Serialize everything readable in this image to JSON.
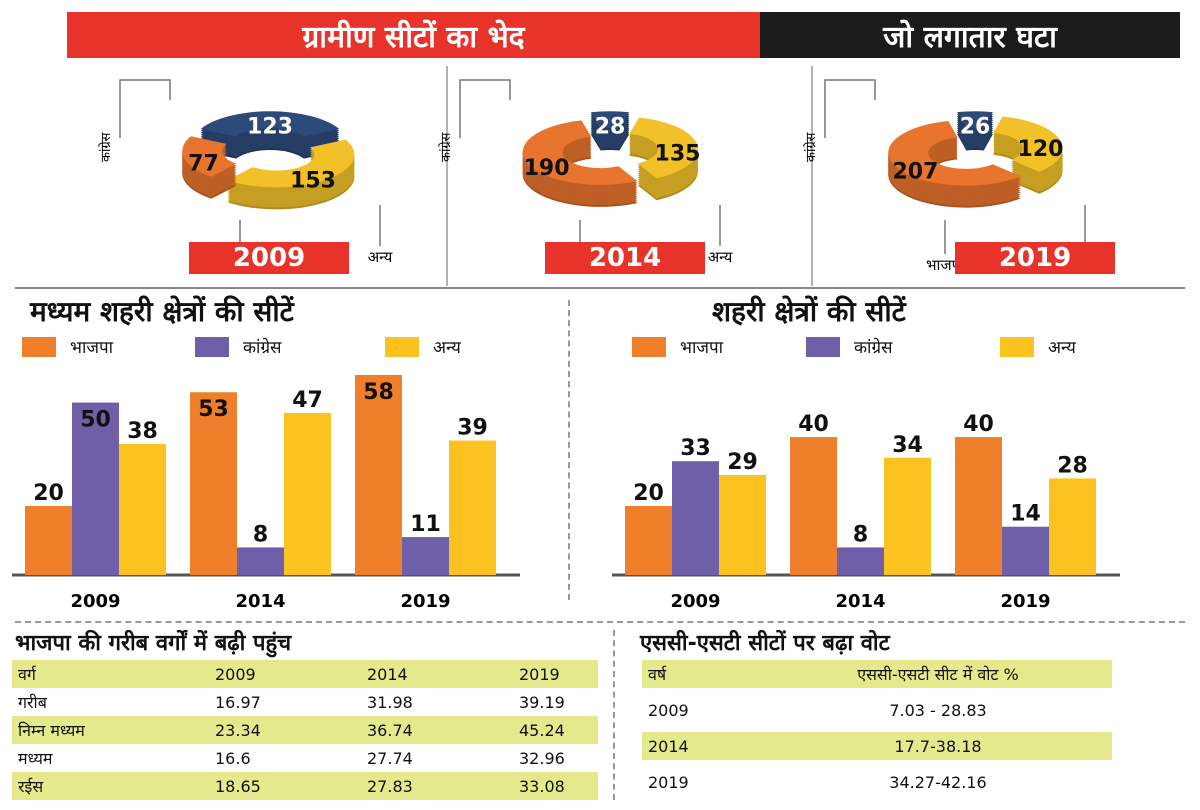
{
  "header": {
    "left_title": "ग्रामीण सीटों का भेद",
    "right_title": "जो लगातार घटा"
  },
  "colors": {
    "bjp": "#ef7f2a",
    "congress": "#6e5fa8",
    "others": "#fcc21f",
    "donut_congress": "#2e4a7a",
    "donut_bjp": "#e8742e",
    "donut_others": "#f2c12a",
    "badge": "#e8332a",
    "table_highlight": "#e4ea8c"
  },
  "rural": {
    "chart_data": {
      "type": "pie",
      "title": "ग्रामीण सीटों का भेद",
      "groups": [
        {
          "year": "2009",
          "labels": [
            "कांग्रेस",
            "भाजपा",
            "अन्य"
          ],
          "values": [
            123,
            77,
            153
          ]
        },
        {
          "year": "2014",
          "labels": [
            "कांग्रेस",
            "भाजपा",
            "अन्य"
          ],
          "values": [
            28,
            190,
            135
          ]
        },
        {
          "year": "2019",
          "labels": [
            "कांग्रेस",
            "भाजपा",
            "अन्य"
          ],
          "values": [
            26,
            207,
            120
          ]
        }
      ]
    },
    "label_congress": "कांग्रेस",
    "label_bjp": "भाजपा",
    "label_others": "अन्य"
  },
  "middle_urban": {
    "chart_data": {
      "type": "bar",
      "title": "मध्यम शहरी क्षेत्रों की सीटें",
      "categories": [
        "2009",
        "2014",
        "2019"
      ],
      "series": [
        {
          "name": "भाजपा",
          "values": [
            20,
            53,
            58
          ]
        },
        {
          "name": "कांग्रेस",
          "values": [
            50,
            8,
            11
          ]
        },
        {
          "name": "अन्य",
          "values": [
            38,
            47,
            39
          ]
        }
      ]
    }
  },
  "urban": {
    "chart_data": {
      "type": "bar",
      "title": "शहरी क्षेत्रों की सीटें",
      "categories": [
        "2009",
        "2014",
        "2019"
      ],
      "series": [
        {
          "name": "भाजपा",
          "values": [
            20,
            40,
            40
          ]
        },
        {
          "name": "कांग्रेस",
          "values": [
            33,
            8,
            14
          ]
        },
        {
          "name": "अन्य",
          "values": [
            29,
            34,
            28
          ]
        }
      ]
    }
  },
  "poor_table": {
    "title": "भाजपा की गरीब वर्गों में बढ़ी पहुंच",
    "header": [
      "वर्ग",
      "2009",
      "2014",
      "2019"
    ],
    "rows": [
      [
        "गरीब",
        "16.97",
        "31.98",
        "39.19"
      ],
      [
        "निम्न मध्यम",
        "23.34",
        "36.74",
        "45.24"
      ],
      [
        "मध्यम",
        "16.6",
        "27.74",
        "32.96"
      ],
      [
        "रईस",
        "18.65",
        "27.83",
        "33.08"
      ]
    ]
  },
  "scst_table": {
    "title": "एससी-एसटी सीटों पर बढ़ा वोट",
    "header": [
      "वर्ष",
      "एससी-एसटी सीट में वोट %"
    ],
    "rows": [
      [
        "2009",
        "7.03 - 28.83"
      ],
      [
        "2014",
        "17.7-38.18"
      ],
      [
        "2019",
        "34.27-42.16"
      ]
    ]
  }
}
